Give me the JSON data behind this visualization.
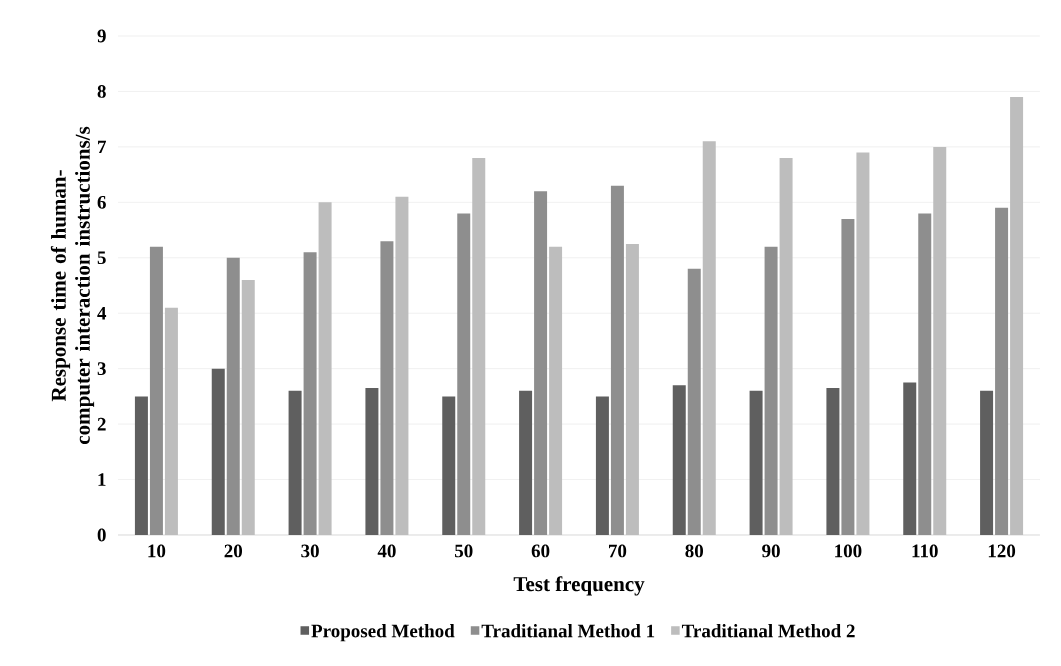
{
  "chart_data": {
    "type": "bar",
    "xlabel": "Test frequency",
    "ylabel": "Response time of human-computer interaction instructions/s",
    "categories": [
      "10",
      "20",
      "30",
      "40",
      "50",
      "60",
      "70",
      "80",
      "90",
      "100",
      "110",
      "120"
    ],
    "series": [
      {
        "name": "Proposed Method",
        "color": "#5f5f5f",
        "values": [
          2.5,
          3.0,
          2.6,
          2.65,
          2.5,
          2.6,
          2.5,
          2.7,
          2.6,
          2.65,
          2.75,
          2.6
        ]
      },
      {
        "name": "Traditianal Method 1",
        "color": "#8e8e8e",
        "values": [
          5.2,
          5.0,
          5.1,
          5.3,
          5.8,
          6.2,
          6.3,
          4.8,
          5.2,
          5.7,
          5.8,
          5.9
        ]
      },
      {
        "name": "Traditianal Method 2",
        "color": "#bdbdbd",
        "values": [
          4.1,
          4.6,
          6.0,
          6.1,
          6.8,
          5.2,
          5.25,
          7.1,
          6.8,
          6.9,
          7.0,
          7.9
        ]
      }
    ],
    "ylim": [
      0,
      9
    ],
    "yticks": [
      0,
      1,
      2,
      3,
      4,
      5,
      6,
      7,
      8,
      9
    ],
    "grid": "y",
    "legend": "bottom"
  }
}
